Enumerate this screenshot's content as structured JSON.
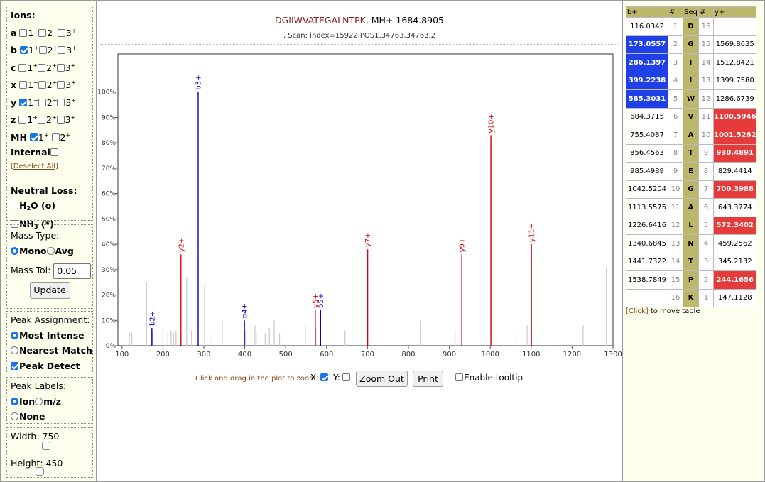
{
  "left_panel": {
    "ions_heading": "Ions:",
    "ion_rows": [
      {
        "label": "a",
        "checks": [
          false,
          false,
          false
        ]
      },
      {
        "label": "b",
        "checks": [
          true,
          false,
          false
        ]
      },
      {
        "label": "c",
        "checks": [
          false,
          false,
          false
        ]
      },
      {
        "label": "x",
        "checks": [
          false,
          false,
          false
        ]
      },
      {
        "label": "y",
        "checks": [
          true,
          false,
          false
        ]
      },
      {
        "label": "z",
        "checks": [
          false,
          false,
          false
        ]
      }
    ],
    "charge_labels": [
      "1",
      "2",
      "3"
    ],
    "mh_label": "MH",
    "mh_checks": [
      true,
      false
    ],
    "internal_label": "Internal",
    "deselect_all": "[Deselect All]",
    "neutral_loss_heading": "Neutral Loss:",
    "h2o_label": "H",
    "h2o_sub": "2",
    "h2o_rest": "O (o)",
    "nh3_label": "NH",
    "nh3_sub": "3",
    "nh3_rest": " (*)",
    "mass_type_heading": "Mass Type:",
    "mono_label": "Mono",
    "avg_label": "Avg",
    "mass_tol_label": "Mass Tol:",
    "mass_tol_value": "0.05",
    "update_button": "Update",
    "peak_assignment_heading": "Peak Assignment:",
    "most_intense": "Most Intense",
    "nearest_match": "Nearest Match",
    "peak_detect": "Peak Detect",
    "peak_labels_heading": "Peak Labels:",
    "ion_option": "Ion",
    "mz_option": "m/z",
    "none_option": "None",
    "width_label": "Width:",
    "width_value": "750",
    "height_label": "Height:",
    "height_value": "450"
  },
  "header": {
    "sequence": "DGIIWVATEGALNTPK",
    "mh_text": ", MH+ 1684.8905",
    "scan_text": ", Scan: index=15922,POS1.34763.34763.2"
  },
  "controls": {
    "zoom_hint": "Click and drag in the plot to zoom",
    "x_label": "X:",
    "y_label": "Y:",
    "zoom_out_button": "Zoom Out",
    "print_button": "Print",
    "enable_tooltip": "Enable tooltip"
  },
  "colors": {
    "b_ion": "#0000cc",
    "y_ion": "#e00000",
    "unmatched": "#c8c8c8",
    "table_header": "#bdb76b"
  },
  "chart_data": {
    "type": "spectrum",
    "xlim": [
      90,
      1300
    ],
    "ylim": [
      0,
      115
    ],
    "x_ticks": [
      100,
      200,
      300,
      400,
      500,
      600,
      700,
      800,
      900,
      1000,
      1100,
      1200,
      1300
    ],
    "y_ticks": [
      "0%",
      "10%",
      "20%",
      "30%",
      "40%",
      "50%",
      "60%",
      "70%",
      "80%",
      "90%",
      "100%"
    ],
    "grey_peaks": [
      [
        118,
        5
      ],
      [
        124,
        5
      ],
      [
        160,
        25
      ],
      [
        175,
        5
      ],
      [
        200,
        7
      ],
      [
        212,
        5
      ],
      [
        220,
        6
      ],
      [
        226,
        5
      ],
      [
        232,
        6
      ],
      [
        244,
        5
      ],
      [
        258,
        27
      ],
      [
        270,
        6
      ],
      [
        302,
        24
      ],
      [
        315,
        6
      ],
      [
        345,
        10
      ],
      [
        402,
        6
      ],
      [
        425,
        8
      ],
      [
        428,
        6
      ],
      [
        450,
        5
      ],
      [
        460,
        7
      ],
      [
        472,
        10
      ],
      [
        485,
        5
      ],
      [
        548,
        8
      ],
      [
        574,
        7
      ],
      [
        645,
        6
      ],
      [
        829,
        10
      ],
      [
        914,
        6
      ],
      [
        985,
        11
      ],
      [
        1063,
        5
      ],
      [
        1090,
        8
      ],
      [
        1227,
        8
      ],
      [
        1284,
        31
      ]
    ],
    "matched_peaks": [
      {
        "x": 173.06,
        "y": 7,
        "label": "b2+",
        "series": "b"
      },
      {
        "x": 244.17,
        "y": 36,
        "label": "y2+",
        "series": "y"
      },
      {
        "x": 286.14,
        "y": 100,
        "label": "b3+",
        "series": "b"
      },
      {
        "x": 399.22,
        "y": 10,
        "label": "b4+",
        "series": "b"
      },
      {
        "x": 572.34,
        "y": 14,
        "label": "y5+",
        "series": "y"
      },
      {
        "x": 585.3,
        "y": 14,
        "label": "b5+",
        "series": "b"
      },
      {
        "x": 700.4,
        "y": 38,
        "label": "y7+",
        "series": "y"
      },
      {
        "x": 930.49,
        "y": 36,
        "label": "y9+",
        "series": "y"
      },
      {
        "x": 1001.53,
        "y": 83,
        "label": "y10+",
        "series": "y"
      },
      {
        "x": 1100.59,
        "y": 40,
        "label": "y11+",
        "series": "y"
      }
    ]
  },
  "fragment_table": {
    "headers": [
      "b+",
      "#",
      "Seq",
      "#",
      "y+"
    ],
    "rows": [
      {
        "b": "116.0342",
        "n1": "1",
        "aa": "D",
        "n2": "16",
        "y": "",
        "hb": false,
        "hy": false
      },
      {
        "b": "173.0557",
        "n1": "2",
        "aa": "G",
        "n2": "15",
        "y": "1569.8635",
        "hb": true,
        "hy": false
      },
      {
        "b": "286.1397",
        "n1": "3",
        "aa": "I",
        "n2": "14",
        "y": "1512.8421",
        "hb": true,
        "hy": false
      },
      {
        "b": "399.2238",
        "n1": "4",
        "aa": "I",
        "n2": "13",
        "y": "1399.7580",
        "hb": true,
        "hy": false
      },
      {
        "b": "585.3031",
        "n1": "5",
        "aa": "W",
        "n2": "12",
        "y": "1286.6739",
        "hb": true,
        "hy": false
      },
      {
        "b": "684.3715",
        "n1": "6",
        "aa": "V",
        "n2": "11",
        "y": "1100.5946",
        "hb": false,
        "hy": true
      },
      {
        "b": "755.4087",
        "n1": "7",
        "aa": "A",
        "n2": "10",
        "y": "1001.5262",
        "hb": false,
        "hy": true
      },
      {
        "b": "856.4563",
        "n1": "8",
        "aa": "T",
        "n2": "9",
        "y": "930.4891",
        "hb": false,
        "hy": true
      },
      {
        "b": "985.4989",
        "n1": "9",
        "aa": "E",
        "n2": "8",
        "y": "829.4414",
        "hb": false,
        "hy": false
      },
      {
        "b": "1042.5204",
        "n1": "10",
        "aa": "G",
        "n2": "7",
        "y": "700.3988",
        "hb": false,
        "hy": true
      },
      {
        "b": "1113.5575",
        "n1": "11",
        "aa": "A",
        "n2": "6",
        "y": "643.3774",
        "hb": false,
        "hy": false
      },
      {
        "b": "1226.6416",
        "n1": "12",
        "aa": "L",
        "n2": "5",
        "y": "572.3402",
        "hb": false,
        "hy": true
      },
      {
        "b": "1340.6845",
        "n1": "13",
        "aa": "N",
        "n2": "4",
        "y": "459.2562",
        "hb": false,
        "hy": false
      },
      {
        "b": "1441.7322",
        "n1": "14",
        "aa": "T",
        "n2": "3",
        "y": "345.2132",
        "hb": false,
        "hy": false
      },
      {
        "b": "1538.7849",
        "n1": "15",
        "aa": "P",
        "n2": "2",
        "y": "244.1656",
        "hb": false,
        "hy": true
      },
      {
        "b": "",
        "n1": "16",
        "aa": "K",
        "n2": "1",
        "y": "147.1128",
        "hb": false,
        "hy": false
      }
    ],
    "click_link": "[Click]",
    "click_rest": " to move table"
  }
}
